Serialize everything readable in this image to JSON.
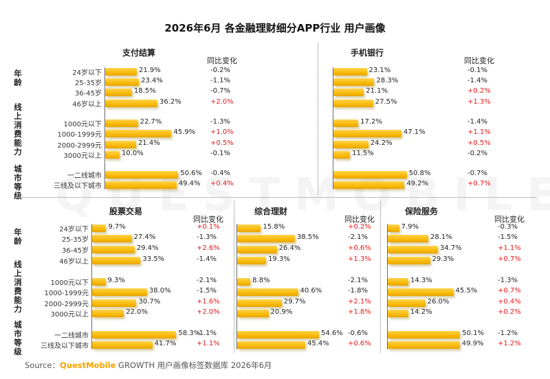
{
  "title": "2026年6月 各金融理财细分APP行业 用户画像",
  "change_header": "同比变化",
  "watermark": "QUESTMOBILE",
  "source": {
    "prefix": "Source：",
    "brand": "QuestMobile",
    "rest": " GROWTH 用户画像标签数据库 2026年6月"
  },
  "groups": [
    "年龄",
    "线上消费能力",
    "城市等级"
  ],
  "colors": {
    "bar": "#f7b500",
    "positive_change": "#e0191b",
    "negative_change": "#222222"
  },
  "chart_data": [
    {
      "type": "bar",
      "title": "支付结算",
      "categories": [
        "24岁以下",
        "25-35岁",
        "36-45岁",
        "46岁以上",
        "1000元以下",
        "1000-1999元",
        "2000-2999元",
        "3000元以上",
        "一二线城市",
        "三线及以下城市"
      ],
      "values": [
        "21.9%",
        "23.4%",
        "18.5%",
        "36.2%",
        "22.7%",
        "45.9%",
        "21.4%",
        "10.0%",
        "50.6%",
        "49.4%"
      ],
      "changes": [
        "-0.2%",
        "-1.1%",
        "-0.7%",
        "+2.0%",
        "-1.3%",
        "+1.0%",
        "+0.5%",
        "-0.1%",
        "-0.4%",
        "+0.4%"
      ]
    },
    {
      "type": "bar",
      "title": "手机银行",
      "categories": [
        "24岁以下",
        "25-35岁",
        "36-45岁",
        "46岁以上",
        "1000元以下",
        "1000-1999元",
        "2000-2999元",
        "3000元以上",
        "一二线城市",
        "三线及以下城市"
      ],
      "values": [
        "23.1%",
        "28.3%",
        "21.1%",
        "27.5%",
        "17.2%",
        "47.1%",
        "24.2%",
        "11.5%",
        "50.8%",
        "49.2%"
      ],
      "changes": [
        "-0.1%",
        "-1.4%",
        "+0.2%",
        "+1.3%",
        "-1.4%",
        "+1.1%",
        "+0.5%",
        "-0.2%",
        "-0.7%",
        "+0.7%"
      ]
    },
    {
      "type": "bar",
      "title": "股票交易",
      "categories": [
        "24岁以下",
        "25-35岁",
        "36-45岁",
        "46岁以上",
        "1000元以下",
        "1000-1999元",
        "2000-2999元",
        "3000元以上",
        "一二线城市",
        "三线及以下城市"
      ],
      "values": [
        "9.7%",
        "27.4%",
        "29.4%",
        "33.5%",
        "9.3%",
        "38.0%",
        "30.7%",
        "22.0%",
        "58.3%",
        "41.7%"
      ],
      "changes": [
        "+0.1%",
        "-1.3%",
        "+2.6%",
        "-1.4%",
        "-2.1%",
        "-1.5%",
        "+1.6%",
        "+2.0%",
        "-1.1%",
        "+1.1%"
      ]
    },
    {
      "type": "bar",
      "title": "综合理财",
      "categories": [
        "24岁以下",
        "25-35岁",
        "36-45岁",
        "46岁以上",
        "1000元以下",
        "1000-1999元",
        "2000-2999元",
        "3000元以上",
        "一二线城市",
        "三线及以下城市"
      ],
      "values": [
        "15.8%",
        "38.5%",
        "26.4%",
        "19.3%",
        "8.8%",
        "40.6%",
        "29.7%",
        "20.9%",
        "54.6%",
        "45.4%"
      ],
      "changes": [
        "+0.2%",
        "-2.1%",
        "+0.6%",
        "+1.3%",
        "-2.1%",
        "-1.8%",
        "+2.1%",
        "+1.8%",
        "-0.6%",
        "+0.6%"
      ]
    },
    {
      "type": "bar",
      "title": "保险服务",
      "categories": [
        "24岁以下",
        "25-35岁",
        "36-45岁",
        "46岁以上",
        "1000元以下",
        "1000-1999元",
        "2000-2999元",
        "3000元以上",
        "一二线城市",
        "三线及以下城市"
      ],
      "values": [
        "7.9%",
        "28.1%",
        "34.7%",
        "29.3%",
        "14.3%",
        "45.5%",
        "26.0%",
        "14.2%",
        "50.1%",
        "49.9%"
      ],
      "changes": [
        "-0.3%",
        "-1.5%",
        "+1.1%",
        "+0.7%",
        "-1.3%",
        "+0.7%",
        "+0.4%",
        "+0.2%",
        "-1.2%",
        "+1.2%"
      ]
    }
  ]
}
